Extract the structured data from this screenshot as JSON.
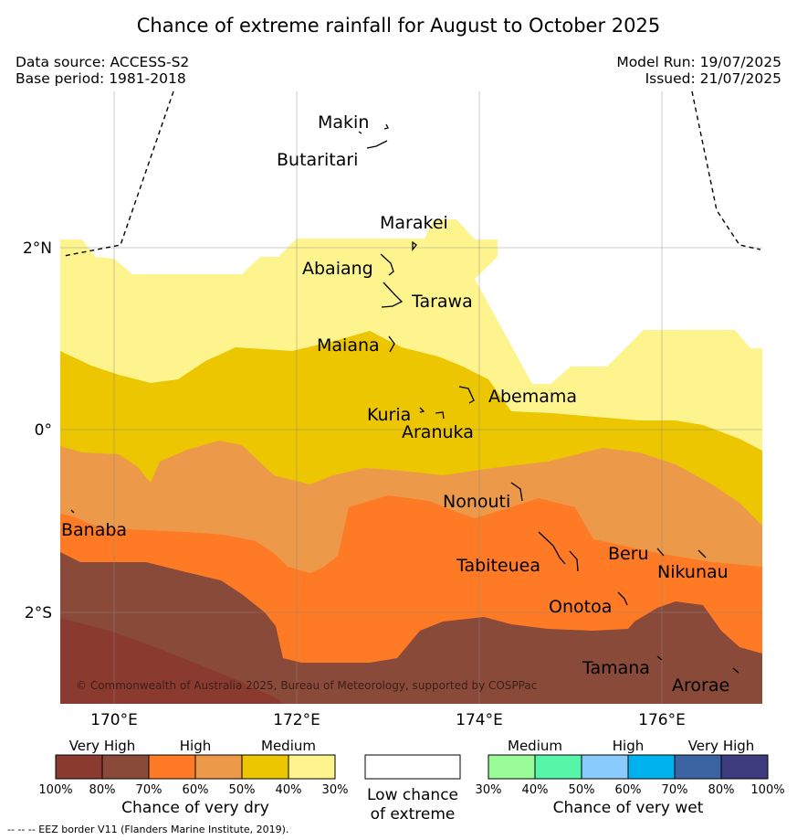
{
  "title": "Chance of extreme rainfall for August to October 2025",
  "meta_left": {
    "data_source": "Data source: ACCESS-S2",
    "base_period": "Base period: 1981-2018"
  },
  "meta_right": {
    "model_run": "Model Run: 19/07/2025",
    "issued": "Issued: 21/07/2025"
  },
  "map": {
    "lon_ticks": [
      "170°E",
      "172°E",
      "174°E",
      "176°E"
    ],
    "lat_ticks": [
      "2°N",
      "0°",
      "2°S"
    ],
    "copyright": "© Commonwealth of Australia 2025, Bureau of Meteorology, supported by COSPPac",
    "places": [
      "Makin",
      "Butaritari",
      "Marakei",
      "Abaiang",
      "Tarawa",
      "Maiana",
      "Abemama",
      "Kuria",
      "Aranuka",
      "Nonouti",
      "Banaba",
      "Tabiteuea",
      "Beru",
      "Nikunau",
      "Onotoa",
      "Tamana",
      "Arorae"
    ],
    "colors": {
      "dry_100_80": "#8b3a30",
      "dry_80_70": "#8a4a3a",
      "dry_70_60": "#fe7a24",
      "dry_60_50": "#ec9a4a",
      "dry_50_40": "#ecc600",
      "dry_40_30": "#fdf48e"
    }
  },
  "legend": {
    "dry": {
      "group_labels": [
        "Very High",
        "High",
        "Medium"
      ],
      "ticks": [
        "100%",
        "80%",
        "70%",
        "60%",
        "50%",
        "40%",
        "30%"
      ],
      "colors": [
        "#8b3a30",
        "#8a4a3a",
        "#fe7a24",
        "#ec9a4a",
        "#ecc600",
        "#fdf48e"
      ],
      "caption": "Chance of very dry"
    },
    "low": {
      "line1": "Low chance",
      "line2": "of extreme"
    },
    "wet": {
      "group_labels": [
        "Medium",
        "High",
        "Very High"
      ],
      "ticks": [
        "30%",
        "40%",
        "50%",
        "60%",
        "70%",
        "80%",
        "100%"
      ],
      "colors": [
        "#98fb98",
        "#56f6a8",
        "#89cbfc",
        "#00b2ee",
        "#3a64a2",
        "#3d3b7e"
      ],
      "caption": "Chance of very wet"
    }
  },
  "footer": "--  --  -- EEZ border V11 (Flanders Marine Institute, 2019)."
}
